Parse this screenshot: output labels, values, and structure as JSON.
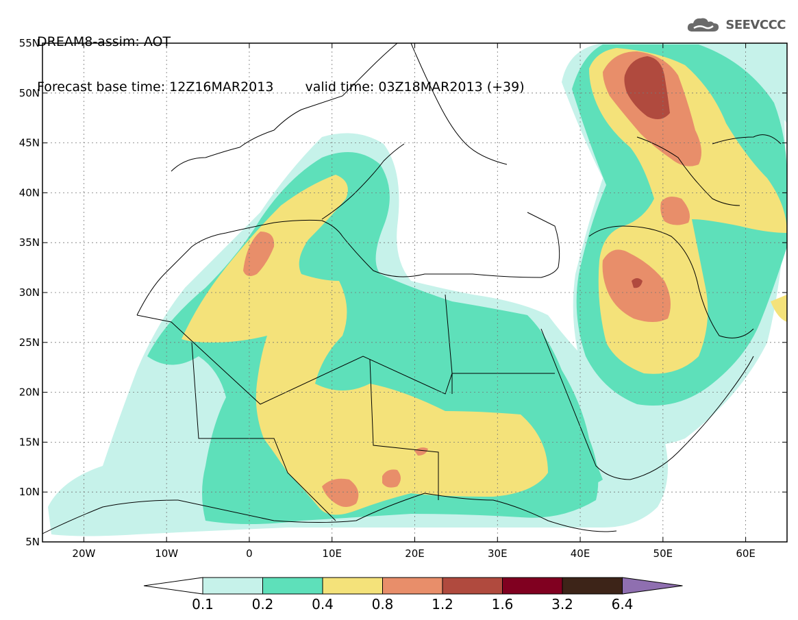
{
  "title": {
    "line1": "DREAM8-assim: AOT",
    "line2_left": "Forecast base time: 12Z16MAR2013",
    "line2_right": "valid time: 03Z18MAR2013 (+39)"
  },
  "logo": {
    "text": "SEEVCCC",
    "icon": "cloud-logo-icon"
  },
  "axes": {
    "lat_labels": [
      "55N",
      "50N",
      "45N",
      "40N",
      "35N",
      "30N",
      "25N",
      "20N",
      "15N",
      "10N",
      "5N"
    ],
    "lon_labels": [
      "20W",
      "10W",
      "0",
      "10E",
      "20E",
      "30E",
      "40E",
      "50E",
      "60E"
    ],
    "lon_range": [
      -25,
      65
    ],
    "lat_range": [
      5,
      55
    ]
  },
  "colorbar": {
    "bins": [
      {
        "color": "#c6f2ea"
      },
      {
        "color": "#5ee0ba"
      },
      {
        "color": "#f4e27a"
      },
      {
        "color": "#e88e6a"
      },
      {
        "color": "#b04a3e"
      },
      {
        "color": "#800020"
      },
      {
        "color": "#3d2418"
      }
    ],
    "under_color": "#ffffff",
    "over_color": "#8f6fb0",
    "labels": [
      "0.1",
      "0.2",
      "0.4",
      "0.8",
      "1.2",
      "1.6",
      "3.2",
      "6.4"
    ]
  }
}
